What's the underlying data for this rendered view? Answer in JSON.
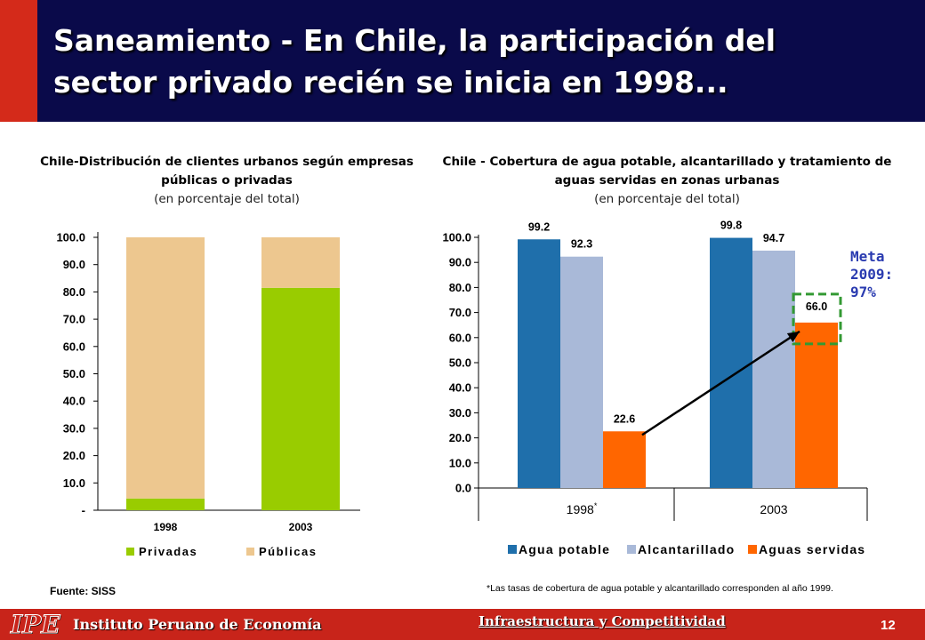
{
  "slide": {
    "title": "Saneamiento - En Chile, la participación del sector privado recién se inicia en 1998...",
    "source": "Fuente: SISS",
    "footnote": "*Las tasas de cobertura de agua potable y alcantarillado corresponden al año 1999.",
    "goal": [
      "Meta",
      "2009:",
      "97%"
    ],
    "footer_org": "Instituto Peruano de Economía",
    "footer_logo": "IPE",
    "footer_section": "Infraestructura y Competitividad",
    "page_number": "12"
  },
  "colors": {
    "header_bg": "#0a0a4a",
    "accent_red": "#c8241a",
    "privadas": "#99cc00",
    "publicas": "#edc78f",
    "agua_potable": "#1f6fab",
    "alcantarillado": "#a9b9d8",
    "aguas_servidas": "#ff6600",
    "goal_box": "#339933",
    "goal_text": "#2a3bb0"
  },
  "chart_data": [
    {
      "type": "bar",
      "stacked": true,
      "title": "Chile-Distribución de clientes urbanos según empresas públicas o privadas",
      "subtitle": "(en porcentaje del total)",
      "categories": [
        "1998",
        "2003"
      ],
      "series": [
        {
          "name": "Privadas",
          "values": [
            4.3,
            81.5
          ]
        },
        {
          "name": "Públicas",
          "values": [
            95.7,
            18.5
          ]
        }
      ],
      "ylim": [
        0,
        100
      ],
      "yticks": [
        0,
        10,
        20,
        30,
        40,
        50,
        60,
        70,
        80,
        90,
        100
      ],
      "ytick_labels": [
        "-",
        "10.0",
        "20.0",
        "30.0",
        "40.0",
        "50.0",
        "60.0",
        "70.0",
        "80.0",
        "90.0",
        "100.0"
      ],
      "legend": "bottom"
    },
    {
      "type": "bar",
      "title": "Chile - Cobertura de agua potable, alcantarillado y tratamiento de aguas servidas en zonas urbanas",
      "subtitle": "(en porcentaje del total)",
      "categories": [
        "1998",
        "2003"
      ],
      "category_marks": [
        "*",
        ""
      ],
      "series": [
        {
          "name": "Agua potable",
          "values": [
            99.2,
            99.8
          ],
          "labels": [
            "99.2",
            "99.8"
          ]
        },
        {
          "name": "Alcantarillado",
          "values": [
            92.3,
            94.7
          ],
          "labels": [
            "92.3",
            "94.7"
          ]
        },
        {
          "name": "Aguas servidas",
          "values": [
            22.6,
            66.0
          ],
          "labels": [
            "22.6",
            "66.0"
          ]
        }
      ],
      "ylim": [
        0,
        100
      ],
      "yticks": [
        0,
        10,
        20,
        30,
        40,
        50,
        60,
        70,
        80,
        90,
        100
      ],
      "ytick_labels": [
        "0.0",
        "10.0",
        "20.0",
        "30.0",
        "40.0",
        "50.0",
        "60.0",
        "70.0",
        "80.0",
        "90.0",
        "100.0"
      ],
      "legend": "bottom"
    }
  ]
}
